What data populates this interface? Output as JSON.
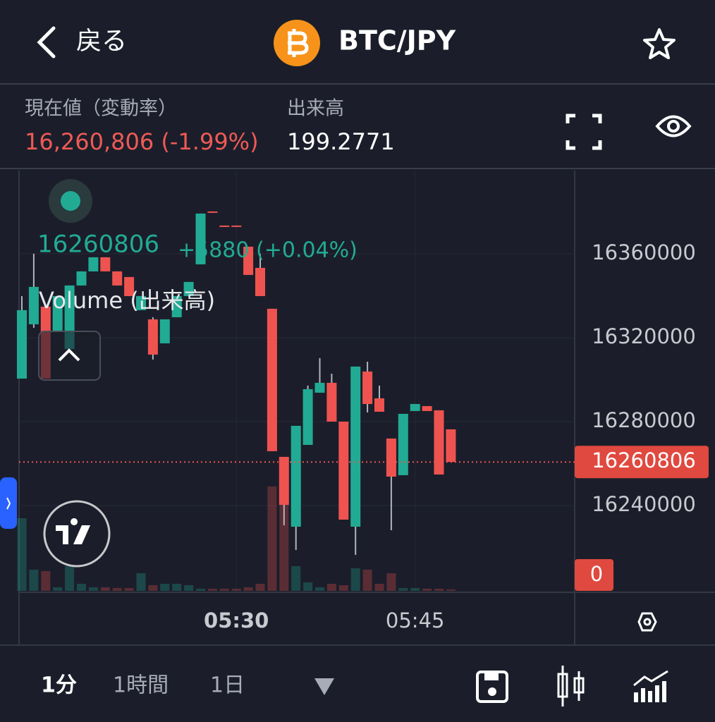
{
  "header": {
    "back": "戻る",
    "symbol": "BTC/JPY"
  },
  "info": {
    "price_label": "現在値（変動率）",
    "price": "16,260,806 (-1.99%)",
    "volume_label": "出来高",
    "volume": "199.2771"
  },
  "legend": {
    "change": "+5880 (+0.04%)",
    "volume_title": "Volume (出来高)"
  },
  "tabs": [
    "1分",
    "1時間",
    "1日"
  ],
  "chart_data": {
    "type": "candlestick",
    "categories": [
      null,
      null,
      null,
      null,
      null,
      null,
      null,
      null,
      null,
      null,
      null,
      null,
      null,
      null,
      null,
      null,
      null,
      null,
      "05:30",
      null,
      null,
      null,
      null,
      null,
      null,
      null,
      null,
      null,
      null,
      null,
      null,
      null,
      null,
      "05:45",
      null,
      null,
      null
    ],
    "up_color": "#22ab94",
    "down_color": "#ef5350",
    "open": [
      16300530,
      16326400,
      16334800,
      16323040,
      16314640,
      16344880,
      16351600,
      16358320,
      16351600,
      16348910,
      16333120,
      16328750,
      16317330,
      16329760,
      16339840,
      16354960,
      16380160,
      16373440,
      16373440,
      16363360,
      16353280,
      16333790,
      16263230,
      16229970,
      16268940,
      16293810,
      16298510,
      16280030,
      16229970,
      16303890,
      16291120,
      16271970,
      16254500,
      16285070,
      16287420,
      16285410,
      16276340
    ],
    "high": [
      16339840,
      16360000,
      16334800,
      16339840,
      16344880,
      16351600,
      16358320,
      16358320,
      16351600,
      16348910,
      16339840,
      16329760,
      16328750,
      16339840,
      16346560,
      16379150,
      16380160,
      16373440,
      16373440,
      16363360,
      16360000,
      16333790,
      16263230,
      16278020,
      16297170,
      16310270,
      16302880,
      16280030,
      16306240,
      16308590,
      16297170,
      16271970,
      16283730,
      16288430,
      16287420,
      16285410,
      16276340
    ],
    "low": [
      16300530,
      16324720,
      16300530,
      16323040,
      16314640,
      16344880,
      16351600,
      16351600,
      16344880,
      16339840,
      16333120,
      16309600,
      16317330,
      16329760,
      16339840,
      16354960,
      16379490,
      16372770,
      16372770,
      16349920,
      16339840,
      16265920,
      16230640,
      16218880,
      16268940,
      16293810,
      16280030,
      16233330,
      16216530,
      16284400,
      16284740,
      16228290,
      16254500,
      16285070,
      16285070,
      16254830,
      16260806
    ],
    "close": [
      16333120,
      16344210,
      16300530,
      16339840,
      16344880,
      16351600,
      16358320,
      16351600,
      16344880,
      16339840,
      16339840,
      16311950,
      16328750,
      16339840,
      16346560,
      16379150,
      16379490,
      16372770,
      16372770,
      16349920,
      16339840,
      16265920,
      16240380,
      16278020,
      16295490,
      16298510,
      16280030,
      16233330,
      16306240,
      16288430,
      16284740,
      16253820,
      16283730,
      16288430,
      16285070,
      16254830,
      16260806
    ],
    "volume": [
      10.3,
      3.0,
      2.8,
      0.5,
      3.5,
      1.0,
      0.5,
      0.5,
      0.4,
      0.4,
      2.5,
      0.8,
      1.0,
      1.0,
      0.8,
      0.3,
      0.3,
      0.3,
      0.3,
      0.5,
      1.0,
      14.8,
      13.0,
      3.5,
      1.2,
      0.5,
      1.0,
      0.8,
      3.2,
      3.0,
      1.0,
      2.5,
      0.4,
      0.4,
      0.3,
      0.3,
      0.2
    ],
    "volume_label": 0,
    "current_price": 16260806,
    "ylim": [
      16199400,
      16399600
    ],
    "yticks": [
      16240000,
      16280000,
      16320000,
      16360000
    ]
  }
}
